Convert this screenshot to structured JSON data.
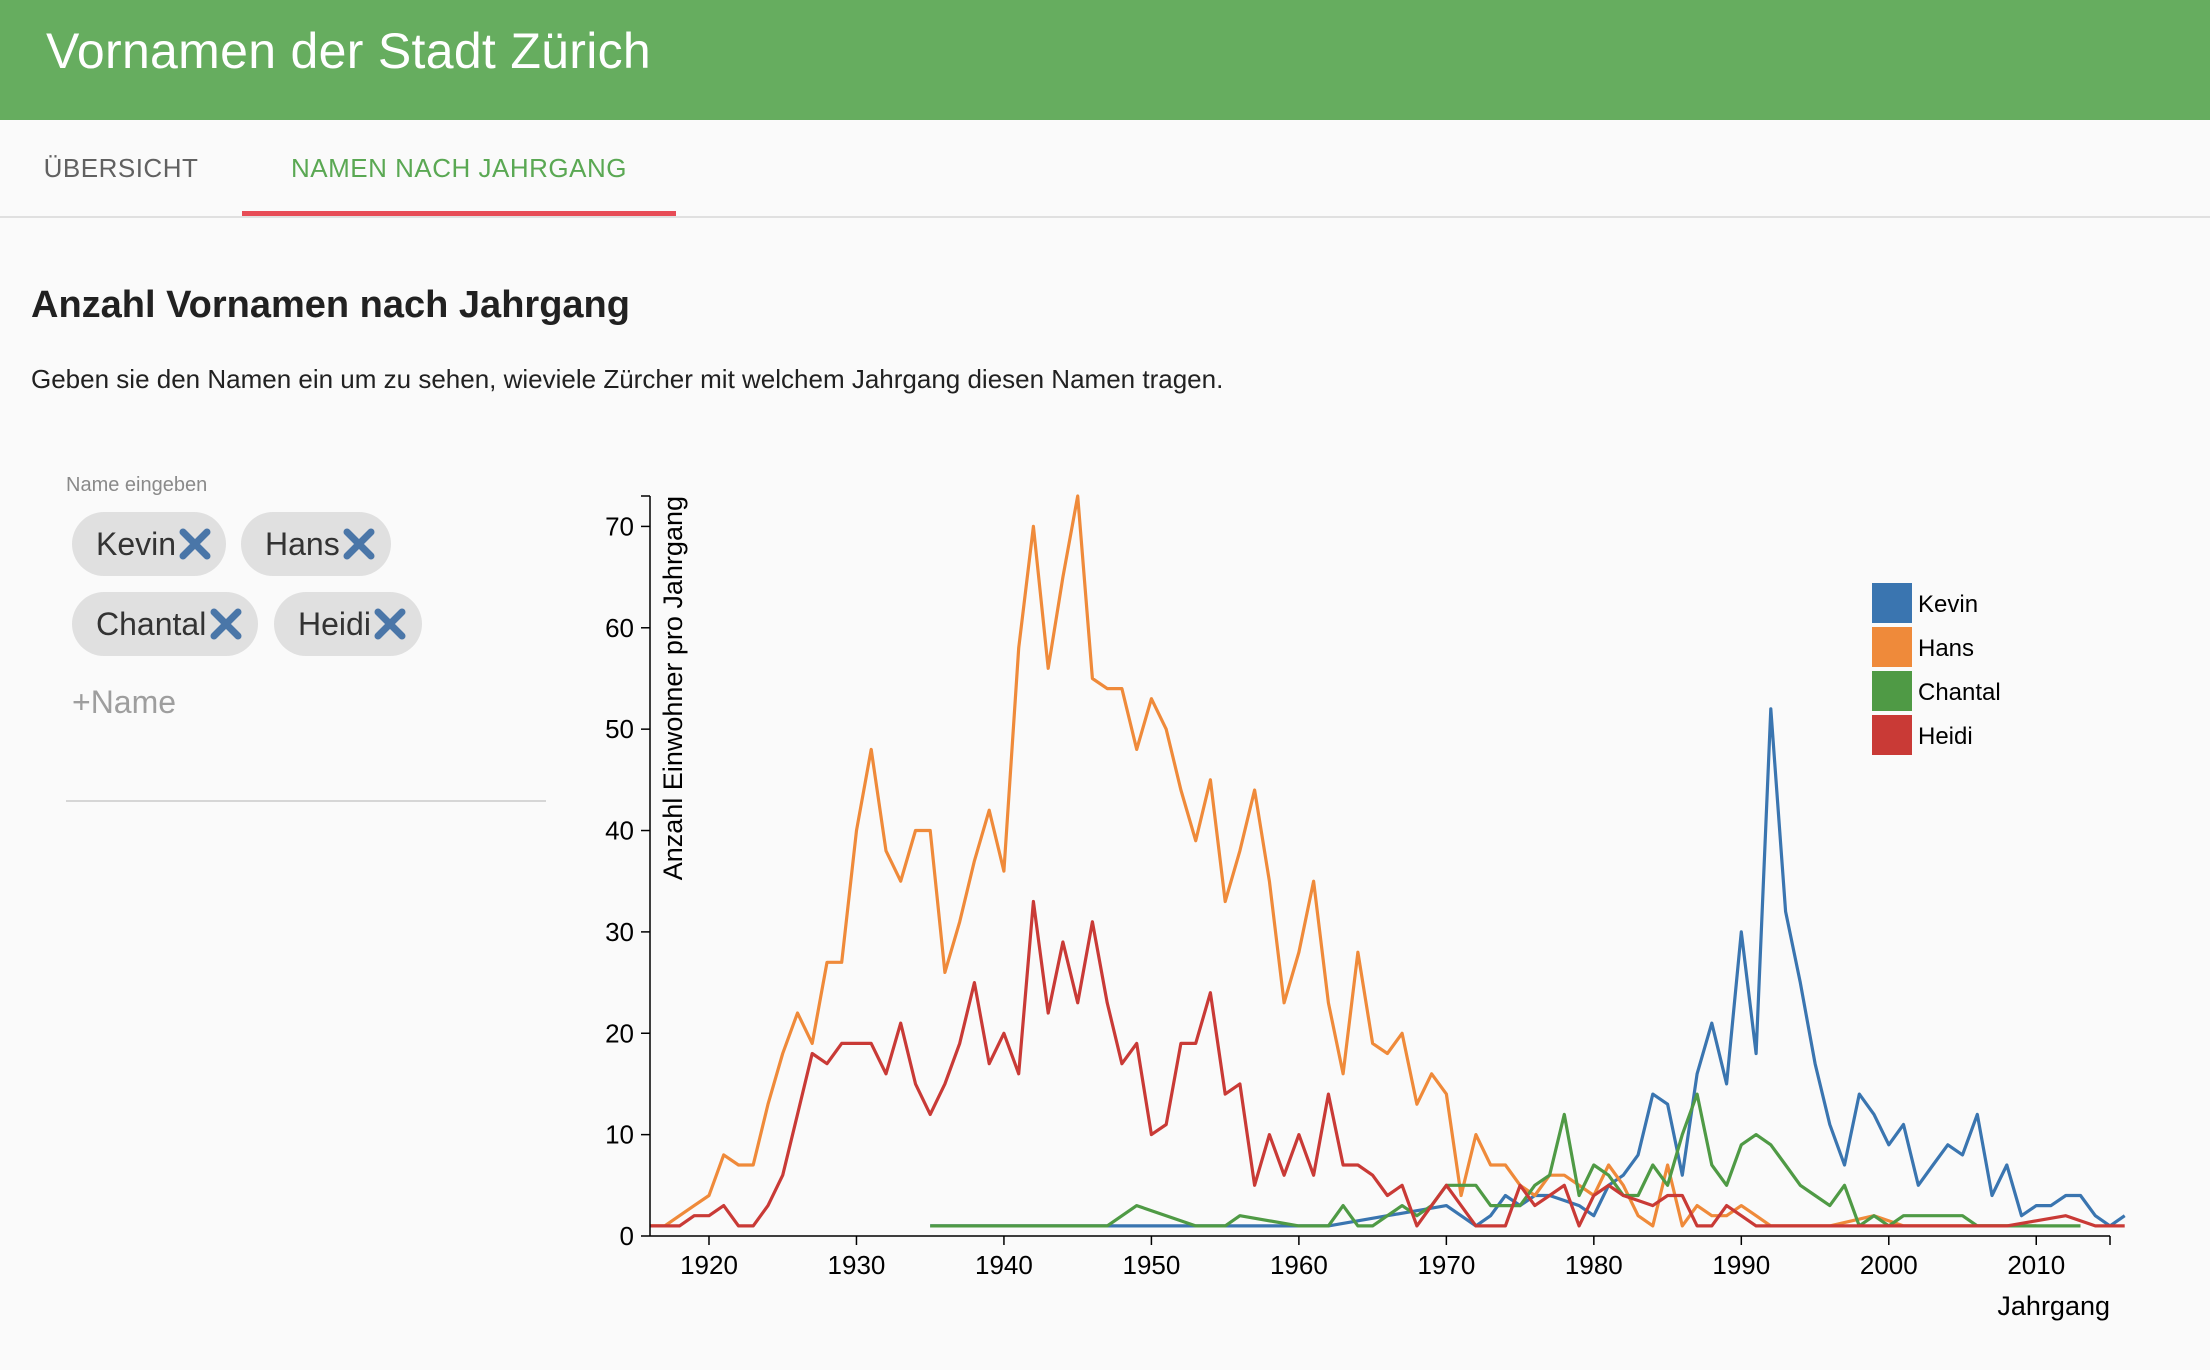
{
  "app": {
    "title": "Vornamen der Stadt Zürich"
  },
  "tabs": [
    {
      "label": "ÜBERSICHT"
    },
    {
      "label": "NAMEN NACH JAHRGANG"
    }
  ],
  "section": {
    "title": "Anzahl Vornamen nach Jahrgang",
    "description": "Geben sie den Namen ein um zu sehen, wieviele Zürcher mit welchem Jahrgang diesen Namen tragen."
  },
  "name_input": {
    "label": "Name eingeben",
    "placeholder": "+Name",
    "value": ""
  },
  "chips": [
    {
      "label": "Kevin",
      "icon": "close-icon"
    },
    {
      "label": "Hans",
      "icon": "close-icon"
    },
    {
      "label": "Chantal",
      "icon": "close-icon"
    },
    {
      "label": "Heidi",
      "icon": "close-icon"
    }
  ],
  "colors": {
    "appbar": "#66ad5f",
    "active_tab": "#5aa853",
    "tab_indicator": "#e74c56",
    "chip_bg": "#e0e0e0",
    "chip_icon": "#4a76a8"
  },
  "chart_data": {
    "type": "line",
    "xlabel": "Jahrgang",
    "ylabel": "Anzahl Einwohner pro Jahrgang",
    "xlim": [
      1916,
      2015
    ],
    "ylim": [
      0,
      73
    ],
    "x_ticks": [
      1920,
      1930,
      1940,
      1950,
      1960,
      1970,
      1980,
      1990,
      2000,
      2010
    ],
    "y_ticks": [
      0,
      10,
      20,
      30,
      40,
      50,
      60,
      70
    ],
    "grid": false,
    "legend": "top-right",
    "series": [
      {
        "name": "Kevin",
        "color": "#3a75b0",
        "points": [
          [
            1935,
            1
          ],
          [
            1947,
            1
          ],
          [
            1955,
            1
          ],
          [
            1962,
            1
          ],
          [
            1964,
            1.5
          ],
          [
            1966,
            2
          ],
          [
            1968,
            2.5
          ],
          [
            1970,
            3
          ],
          [
            1972,
            1
          ],
          [
            1973,
            2
          ],
          [
            1974,
            4
          ],
          [
            1975,
            3
          ],
          [
            1976,
            4
          ],
          [
            1977,
            4
          ],
          [
            1978,
            3.5
          ],
          [
            1979,
            3
          ],
          [
            1980,
            2
          ],
          [
            1981,
            5
          ],
          [
            1982,
            6
          ],
          [
            1983,
            8
          ],
          [
            1984,
            14
          ],
          [
            1985,
            13
          ],
          [
            1986,
            6
          ],
          [
            1987,
            16
          ],
          [
            1988,
            21
          ],
          [
            1989,
            15
          ],
          [
            1990,
            30
          ],
          [
            1991,
            18
          ],
          [
            1992,
            52
          ],
          [
            1993,
            32
          ],
          [
            1994,
            25
          ],
          [
            1995,
            17
          ],
          [
            1996,
            11
          ],
          [
            1997,
            7
          ],
          [
            1998,
            14
          ],
          [
            1999,
            12
          ],
          [
            2000,
            9
          ],
          [
            2001,
            11
          ],
          [
            2002,
            5
          ],
          [
            2003,
            7
          ],
          [
            2004,
            9
          ],
          [
            2005,
            8
          ],
          [
            2006,
            12
          ],
          [
            2007,
            4
          ],
          [
            2008,
            7
          ],
          [
            2009,
            2
          ],
          [
            2010,
            3
          ],
          [
            2011,
            3
          ],
          [
            2012,
            4
          ],
          [
            2013,
            4
          ],
          [
            2014,
            2
          ],
          [
            2015,
            1
          ],
          [
            2016,
            2
          ]
        ]
      },
      {
        "name": "Hans",
        "color": "#ef8a3a",
        "points": [
          [
            1916,
            1
          ],
          [
            1917,
            1
          ],
          [
            1918,
            2
          ],
          [
            1919,
            3
          ],
          [
            1920,
            4
          ],
          [
            1921,
            8
          ],
          [
            1922,
            7
          ],
          [
            1923,
            7
          ],
          [
            1924,
            13
          ],
          [
            1925,
            18
          ],
          [
            1926,
            22
          ],
          [
            1927,
            19
          ],
          [
            1928,
            27
          ],
          [
            1929,
            27
          ],
          [
            1930,
            40
          ],
          [
            1931,
            48
          ],
          [
            1932,
            38
          ],
          [
            1933,
            35
          ],
          [
            1934,
            40
          ],
          [
            1935,
            40
          ],
          [
            1936,
            26
          ],
          [
            1937,
            31
          ],
          [
            1938,
            37
          ],
          [
            1939,
            42
          ],
          [
            1940,
            36
          ],
          [
            1941,
            58
          ],
          [
            1942,
            70
          ],
          [
            1943,
            56
          ],
          [
            1944,
            65
          ],
          [
            1945,
            73
          ],
          [
            1946,
            55
          ],
          [
            1947,
            54
          ],
          [
            1948,
            54
          ],
          [
            1949,
            48
          ],
          [
            1950,
            53
          ],
          [
            1951,
            50
          ],
          [
            1952,
            44
          ],
          [
            1953,
            39
          ],
          [
            1954,
            45
          ],
          [
            1955,
            33
          ],
          [
            1956,
            38
          ],
          [
            1957,
            44
          ],
          [
            1958,
            35
          ],
          [
            1959,
            23
          ],
          [
            1960,
            28
          ],
          [
            1961,
            35
          ],
          [
            1962,
            23
          ],
          [
            1963,
            16
          ],
          [
            1964,
            28
          ],
          [
            1965,
            19
          ],
          [
            1966,
            18
          ],
          [
            1967,
            20
          ],
          [
            1968,
            13
          ],
          [
            1969,
            16
          ],
          [
            1970,
            14
          ],
          [
            1971,
            4
          ],
          [
            1972,
            10
          ],
          [
            1973,
            7
          ],
          [
            1974,
            7
          ],
          [
            1975,
            5
          ],
          [
            1976,
            4
          ],
          [
            1977,
            6
          ],
          [
            1978,
            6
          ],
          [
            1979,
            5
          ],
          [
            1980,
            4
          ],
          [
            1981,
            7
          ],
          [
            1982,
            5
          ],
          [
            1983,
            2
          ],
          [
            1984,
            1
          ],
          [
            1985,
            7
          ],
          [
            1986,
            1
          ],
          [
            1987,
            3
          ],
          [
            1988,
            2
          ],
          [
            1989,
            2
          ],
          [
            1990,
            3
          ],
          [
            1991,
            2
          ],
          [
            1992,
            1
          ],
          [
            1993,
            1
          ],
          [
            1996,
            1
          ],
          [
            1999,
            2
          ],
          [
            2001,
            1
          ],
          [
            2010,
            1
          ]
        ]
      },
      {
        "name": "Chantal",
        "color": "#4f9a45",
        "points": [
          [
            1935,
            1
          ],
          [
            1947,
            1
          ],
          [
            1949,
            3
          ],
          [
            1953,
            1
          ],
          [
            1955,
            1
          ],
          [
            1956,
            2
          ],
          [
            1960,
            1
          ],
          [
            1962,
            1
          ],
          [
            1963,
            3
          ],
          [
            1964,
            1
          ],
          [
            1965,
            1
          ],
          [
            1966,
            2
          ],
          [
            1967,
            3
          ],
          [
            1968,
            2
          ],
          [
            1969,
            3
          ],
          [
            1970,
            5
          ],
          [
            1971,
            5
          ],
          [
            1972,
            5
          ],
          [
            1973,
            3
          ],
          [
            1974,
            3
          ],
          [
            1975,
            3
          ],
          [
            1976,
            5
          ],
          [
            1977,
            6
          ],
          [
            1978,
            12
          ],
          [
            1979,
            4
          ],
          [
            1980,
            7
          ],
          [
            1981,
            6
          ],
          [
            1982,
            4
          ],
          [
            1983,
            4
          ],
          [
            1984,
            7
          ],
          [
            1985,
            5
          ],
          [
            1986,
            10
          ],
          [
            1987,
            14
          ],
          [
            1988,
            7
          ],
          [
            1989,
            5
          ],
          [
            1990,
            9
          ],
          [
            1991,
            10
          ],
          [
            1992,
            9
          ],
          [
            1993,
            7
          ],
          [
            1994,
            5
          ],
          [
            1995,
            4
          ],
          [
            1996,
            3
          ],
          [
            1997,
            5
          ],
          [
            1998,
            1
          ],
          [
            1999,
            2
          ],
          [
            2000,
            1
          ],
          [
            2001,
            2
          ],
          [
            2002,
            2
          ],
          [
            2005,
            2
          ],
          [
            2006,
            1
          ],
          [
            2013,
            1
          ]
        ]
      },
      {
        "name": "Heidi",
        "color": "#c93a36",
        "points": [
          [
            1916,
            1
          ],
          [
            1917,
            1
          ],
          [
            1918,
            1
          ],
          [
            1919,
            2
          ],
          [
            1920,
            2
          ],
          [
            1921,
            3
          ],
          [
            1922,
            1
          ],
          [
            1923,
            1
          ],
          [
            1924,
            3
          ],
          [
            1925,
            6
          ],
          [
            1926,
            12
          ],
          [
            1927,
            18
          ],
          [
            1928,
            17
          ],
          [
            1929,
            19
          ],
          [
            1930,
            19
          ],
          [
            1931,
            19
          ],
          [
            1932,
            16
          ],
          [
            1933,
            21
          ],
          [
            1934,
            15
          ],
          [
            1935,
            12
          ],
          [
            1936,
            15
          ],
          [
            1937,
            19
          ],
          [
            1938,
            25
          ],
          [
            1939,
            17
          ],
          [
            1940,
            20
          ],
          [
            1941,
            16
          ],
          [
            1942,
            33
          ],
          [
            1943,
            22
          ],
          [
            1944,
            29
          ],
          [
            1945,
            23
          ],
          [
            1946,
            31
          ],
          [
            1947,
            23
          ],
          [
            1948,
            17
          ],
          [
            1949,
            19
          ],
          [
            1950,
            10
          ],
          [
            1951,
            11
          ],
          [
            1952,
            19
          ],
          [
            1953,
            19
          ],
          [
            1954,
            24
          ],
          [
            1955,
            14
          ],
          [
            1956,
            15
          ],
          [
            1957,
            5
          ],
          [
            1958,
            10
          ],
          [
            1959,
            6
          ],
          [
            1960,
            10
          ],
          [
            1961,
            6
          ],
          [
            1962,
            14
          ],
          [
            1963,
            7
          ],
          [
            1964,
            7
          ],
          [
            1965,
            6
          ],
          [
            1966,
            4
          ],
          [
            1967,
            5
          ],
          [
            1968,
            1
          ],
          [
            1969,
            3
          ],
          [
            1970,
            5
          ],
          [
            1971,
            3
          ],
          [
            1972,
            1
          ],
          [
            1973,
            1
          ],
          [
            1974,
            1
          ],
          [
            1975,
            5
          ],
          [
            1976,
            3
          ],
          [
            1977,
            4
          ],
          [
            1978,
            5
          ],
          [
            1979,
            1
          ],
          [
            1980,
            4
          ],
          [
            1981,
            5
          ],
          [
            1982,
            4
          ],
          [
            1983,
            3.5
          ],
          [
            1984,
            3
          ],
          [
            1985,
            4
          ],
          [
            1986,
            4
          ],
          [
            1987,
            1
          ],
          [
            1988,
            1
          ],
          [
            1989,
            3
          ],
          [
            1990,
            2
          ],
          [
            1991,
            1
          ],
          [
            1993,
            1
          ],
          [
            1995,
            1
          ],
          [
            2005,
            1
          ],
          [
            2008,
            1
          ],
          [
            2010,
            1.5
          ],
          [
            2012,
            2
          ],
          [
            2014,
            1
          ],
          [
            2016,
            1
          ]
        ]
      }
    ]
  }
}
